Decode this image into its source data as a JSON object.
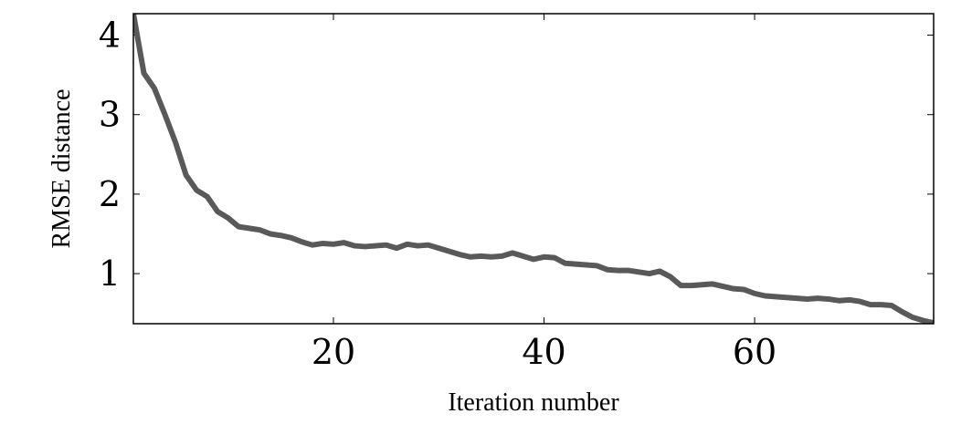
{
  "chart_data": {
    "type": "line",
    "xlabel": "Iteration number",
    "ylabel": "RMSE distance",
    "xlim": [
      1,
      77
    ],
    "ylim": [
      0.37,
      4.27
    ],
    "xticks": [
      20,
      40,
      60
    ],
    "yticks": [
      1,
      2,
      3,
      4
    ],
    "grid": false,
    "legend": "none",
    "line_color": "#595959",
    "series": [
      {
        "x": [
          1,
          2,
          3,
          4,
          5,
          6,
          7,
          8,
          9,
          10,
          11,
          12,
          13,
          14,
          15,
          16,
          17,
          18,
          19,
          20,
          21,
          22,
          23,
          24,
          25,
          26,
          27,
          28,
          29,
          30,
          31,
          32,
          33,
          34,
          35,
          36,
          37,
          38,
          39,
          40,
          41,
          42,
          43,
          44,
          45,
          46,
          47,
          48,
          49,
          50,
          51,
          52,
          53,
          54,
          55,
          56,
          57,
          58,
          59,
          60,
          61,
          62,
          63,
          64,
          65,
          66,
          67,
          68,
          69,
          70,
          71,
          72,
          73,
          74,
          75,
          76,
          77
        ],
        "values": [
          4.27,
          3.52,
          3.33,
          3.0,
          2.65,
          2.24,
          2.05,
          1.97,
          1.78,
          1.7,
          1.59,
          1.57,
          1.55,
          1.5,
          1.48,
          1.45,
          1.4,
          1.36,
          1.38,
          1.37,
          1.39,
          1.35,
          1.34,
          1.35,
          1.36,
          1.32,
          1.37,
          1.35,
          1.36,
          1.32,
          1.28,
          1.24,
          1.21,
          1.22,
          1.21,
          1.22,
          1.26,
          1.22,
          1.18,
          1.21,
          1.2,
          1.13,
          1.12,
          1.11,
          1.1,
          1.05,
          1.04,
          1.04,
          1.02,
          1.0,
          1.03,
          0.96,
          0.85,
          0.85,
          0.86,
          0.87,
          0.84,
          0.81,
          0.8,
          0.75,
          0.72,
          0.71,
          0.7,
          0.69,
          0.68,
          0.69,
          0.68,
          0.66,
          0.67,
          0.65,
          0.61,
          0.61,
          0.6,
          0.52,
          0.45,
          0.41,
          0.38
        ]
      }
    ]
  }
}
